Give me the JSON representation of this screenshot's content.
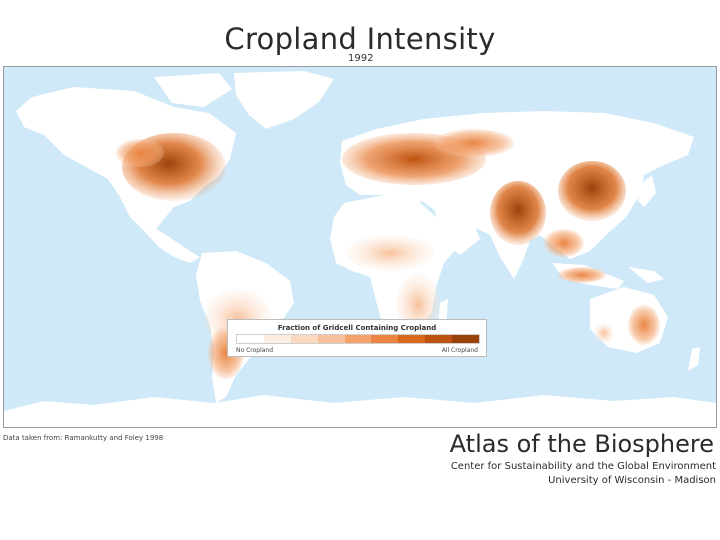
{
  "title": "Cropland Intensity",
  "year": "1992",
  "map": {
    "ocean_color": "#cfe9f8",
    "land_color": "#ffffff",
    "ice_color": "#ffffff"
  },
  "legend": {
    "title": "Fraction of Gridcell Containing Cropland",
    "low_label": "No Cropland",
    "high_label": "All Cropland",
    "colors": [
      "#ffffff",
      "#fdeee2",
      "#fbd9c0",
      "#f8c19b",
      "#f3a26c",
      "#e98441",
      "#d9691e",
      "#bd5310",
      "#9a420b"
    ]
  },
  "source": "Data taken from: Ramankutty and Foley 1998",
  "atlas": {
    "title": "Atlas of the Biosphere",
    "subtitle": "Center for Sustainability and the Global Environment",
    "university": "University of Wisconsin - Madison"
  }
}
